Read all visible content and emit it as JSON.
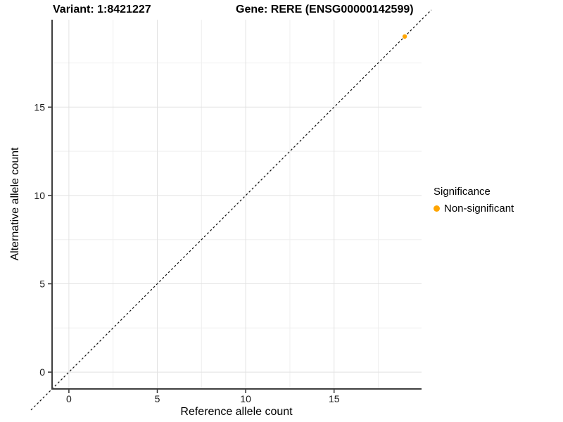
{
  "colors": {
    "point": "#FFA500",
    "grid_major": "#e2e2e2",
    "grid_minor": "#efefef",
    "axis_line": "#3f3f3f",
    "tick_mark": "#333333",
    "tick_label": "#1a1a1a",
    "identity_line": "#111111",
    "background": "#ffffff"
  },
  "chart_data": {
    "type": "scatter",
    "title_variant": "Variant: 1:8421227",
    "title_gene": "Gene: RERE (ENSG00000142599)",
    "xlabel": "Reference allele count",
    "ylabel": "Alternative allele count",
    "xlim": [
      -0.95,
      19.95
    ],
    "ylim": [
      -0.95,
      19.95
    ],
    "x_ticks": [
      0,
      5,
      10,
      15
    ],
    "y_ticks": [
      0,
      5,
      10,
      15
    ],
    "x_minor_ticks": [
      2.5,
      7.5,
      12.5,
      17.5
    ],
    "y_minor_ticks": [
      2.5,
      7.5,
      12.5,
      17.5
    ],
    "grid": "major and minor gridlines, white panel",
    "reference_line": {
      "type": "identity y = x",
      "style": "dashed",
      "color": "#111111"
    },
    "series": [
      {
        "name": "Non-significant",
        "color": "#FFA500",
        "points": [
          {
            "x": 19,
            "y": 19
          }
        ]
      }
    ],
    "legend": {
      "title": "Significance",
      "position": "right",
      "entries": [
        {
          "label": "Non-significant",
          "color": "#FFA500"
        }
      ]
    }
  }
}
